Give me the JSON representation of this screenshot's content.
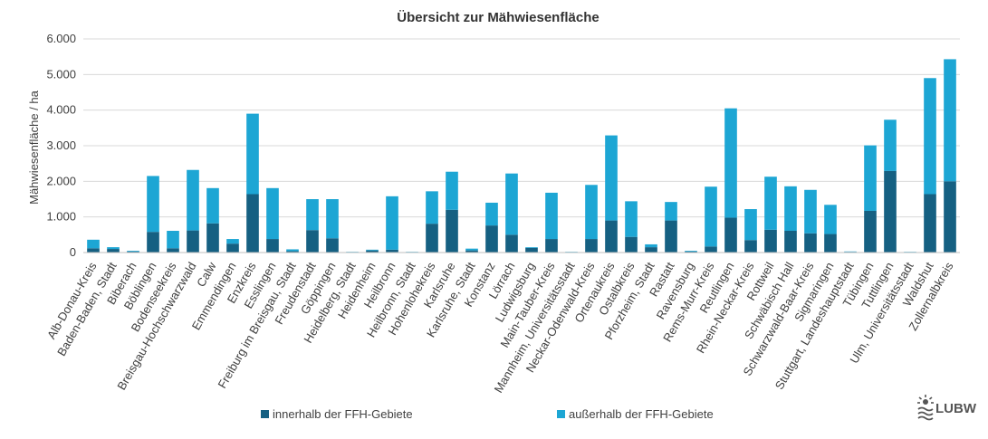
{
  "chart_data": {
    "type": "bar",
    "stacked": true,
    "title": "Übersicht zur Mähwiesenfläche",
    "ylabel": "Mähwiesenfläche / ha",
    "xlabel": "",
    "ylim": [
      0,
      6000
    ],
    "yticks": [
      0,
      1000,
      2000,
      3000,
      4000,
      5000,
      6000
    ],
    "ytick_labels": [
      "0",
      "1.000",
      "2.000",
      "3.000",
      "4.000",
      "5.000",
      "6.000"
    ],
    "grid": true,
    "legend_position": "bottom",
    "categories": [
      "Alb-Donau-Kreis",
      "Baden-Baden, Stadt",
      "Biberach",
      "Böblingen",
      "Bodenseekreis",
      "Breisgau-Hochschwarzwald",
      "Calw",
      "Emmendingen",
      "Enzkreis",
      "Esslingen",
      "Freiburg im Breisgau, Stadt",
      "Freudenstadt",
      "Göppingen",
      "Heidelberg, Stadt",
      "Heidenheim",
      "Heilbronn",
      "Heilbronn, Stadt",
      "Hohenlohekreis",
      "Karlsruhe",
      "Karlsruhe, Stadt",
      "Konstanz",
      "Lörrach",
      "Ludwigsburg",
      "Main-Tauber-Kreis",
      "Mannheim, Universitätsstadt",
      "Neckar-Odenwald-Kreis",
      "Ortenaukreis",
      "Ostalbkreis",
      "Pforzheim, Stadt",
      "Rastatt",
      "Ravensburg",
      "Rems-Murr-Kreis",
      "Reutlingen",
      "Rhein-Neckar-Kreis",
      "Rottweil",
      "Schwäbisch Hall",
      "Schwarzwald-Baar-Kreis",
      "Sigmaringen",
      "Stuttgart, Landeshauptstadt",
      "Tübingen",
      "Tuttlingen",
      "Ulm, Universitätsstadt",
      "Waldshut",
      "Zollernalbkreis"
    ],
    "series": [
      {
        "name": "innerhalb der FFH-Gebiete",
        "color": "#156082",
        "values": [
          120,
          100,
          30,
          580,
          120,
          620,
          820,
          250,
          1640,
          380,
          40,
          630,
          400,
          10,
          60,
          80,
          10,
          810,
          1200,
          60,
          760,
          500,
          130,
          380,
          10,
          380,
          900,
          440,
          150,
          900,
          30,
          170,
          980,
          350,
          640,
          610,
          540,
          520,
          20,
          1170,
          2290,
          10,
          1640,
          2000
        ]
      },
      {
        "name": "außerhalb der FFH-Gebiete",
        "color": "#1DA6D4",
        "values": [
          240,
          50,
          20,
          1570,
          490,
          1700,
          990,
          130,
          2260,
          1430,
          50,
          870,
          1100,
          10,
          20,
          1500,
          10,
          910,
          1070,
          50,
          640,
          1720,
          20,
          1300,
          10,
          1520,
          2390,
          1000,
          80,
          520,
          20,
          1680,
          3070,
          870,
          1490,
          1250,
          1220,
          820,
          10,
          1840,
          1440,
          10,
          3260,
          3430
        ]
      }
    ]
  },
  "logo": {
    "text": "LUBW"
  }
}
